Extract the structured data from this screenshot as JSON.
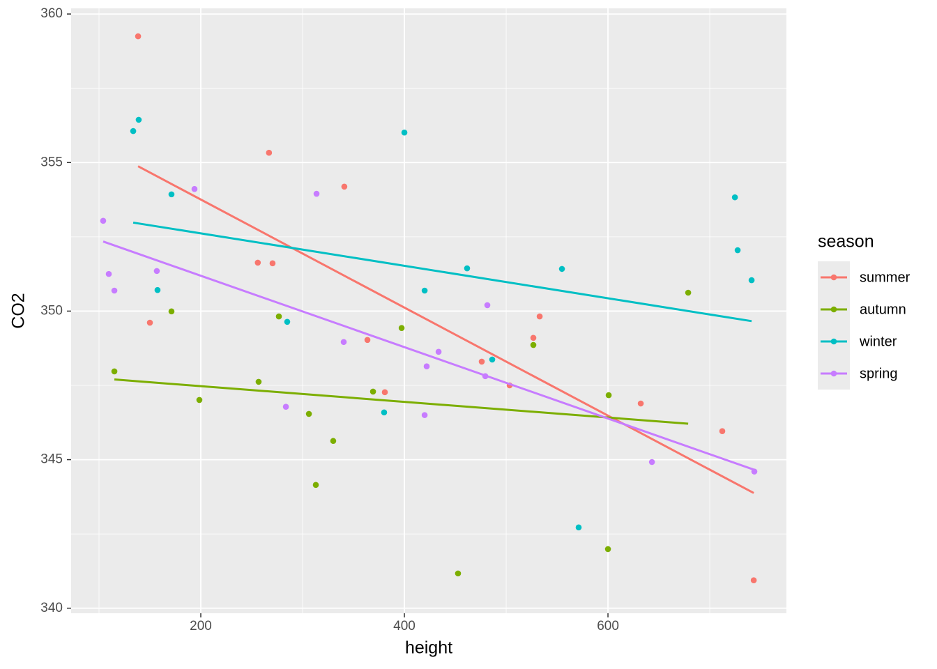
{
  "chart_data": {
    "type": "scatter",
    "x_label": "height",
    "y_label": "CO2",
    "legend_title": "season",
    "legend_position": "right",
    "smooth": "lm",
    "grid": true,
    "background": "#ebebeb",
    "xlim": [
      72.6,
      775.3
    ],
    "xticks": [
      200,
      400,
      600
    ],
    "ylim": [
      339.83,
      360.19
    ],
    "yticks": [
      340,
      345,
      350,
      355,
      360
    ],
    "series": [
      {
        "name": "summer",
        "color": "#F8766D",
        "x": [
          138.4,
          150,
          267,
          256,
          270.5,
          341,
          363.7,
          380.8,
          476,
          503.4,
          526.7,
          532.9,
          632.2,
          712.3,
          743.2
        ],
        "y": [
          359.25,
          349.61,
          355.33,
          351.63,
          351.61,
          354.19,
          349.03,
          347.27,
          348.3,
          347.5,
          349.1,
          349.82,
          346.89,
          345.96,
          340.94
        ]
      },
      {
        "name": "autumn",
        "color": "#7CAE00",
        "x": [
          115.1,
          171.2,
          198.6,
          256.8,
          276.7,
          306.2,
          313,
          330.1,
          369.2,
          397.3,
          452.7,
          526.7,
          600.7,
          600,
          678.8
        ],
        "y": [
          347.97,
          349.99,
          347.01,
          347.62,
          349.82,
          346.54,
          344.15,
          345.63,
          347.29,
          349.43,
          341.17,
          348.86,
          347.17,
          341.99,
          350.62
        ]
      },
      {
        "name": "winter",
        "color": "#00BFC4",
        "x": [
          133.6,
          139,
          171.2,
          157.5,
          284.9,
          400,
          380.1,
          419.9,
          461.6,
          486.3,
          554.8,
          571.2,
          724.7,
          727.4,
          741.1
        ],
        "y": [
          356.06,
          356.44,
          353.93,
          350.71,
          349.64,
          356.01,
          346.59,
          350.69,
          351.44,
          348.37,
          351.42,
          342.72,
          353.83,
          352.05,
          351.04
        ]
      },
      {
        "name": "spring",
        "color": "#C77CFF",
        "x": [
          104.1,
          109.6,
          115.1,
          156.8,
          193.8,
          283.6,
          313.7,
          340.4,
          421.9,
          419.9,
          433.6,
          479.5,
          481.5,
          643.2,
          743.8
        ],
        "y": [
          353.04,
          351.25,
          350.69,
          351.35,
          354.11,
          346.78,
          353.95,
          348.96,
          348.14,
          346.5,
          348.63,
          347.81,
          350.2,
          344.92,
          344.6
        ]
      }
    ]
  }
}
